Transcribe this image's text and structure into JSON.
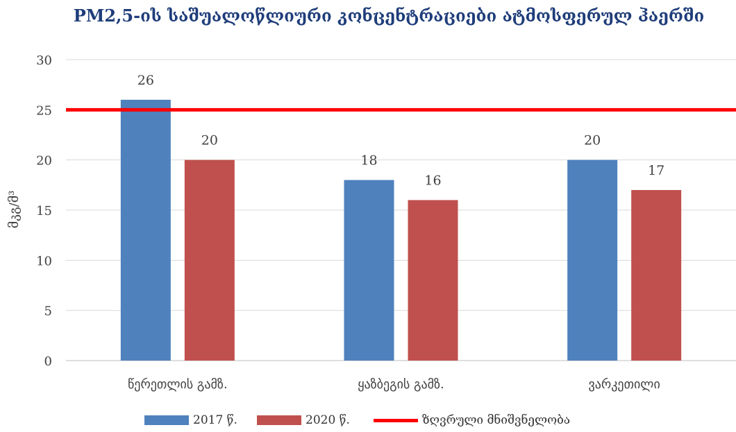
{
  "chart_data": {
    "type": "bar",
    "title": "PM2,5-ის საშუალოწლიური კონცენტრაციები ატმოსფერულ ჰაერში",
    "ylabel": "მკგ/მ³",
    "xlabel": "",
    "ylim": [
      0,
      30
    ],
    "yticks": [
      0,
      5,
      10,
      15,
      20,
      25,
      30
    ],
    "grid": true,
    "categories": [
      "წერეთლის გამზ.",
      "ყაზბეგის გამზ.",
      "ვარკეთილი"
    ],
    "series": [
      {
        "name": "2017 წ.",
        "values": [
          26,
          18,
          20
        ],
        "color": "#4f81bd"
      },
      {
        "name": "2020 წ.",
        "values": [
          20,
          16,
          17
        ],
        "color": "#c0504d"
      }
    ],
    "reference_line": {
      "name": "ზღვრული მნიშვნელობა",
      "value": 25,
      "color": "#ff0000"
    },
    "legend_position": "bottom"
  }
}
